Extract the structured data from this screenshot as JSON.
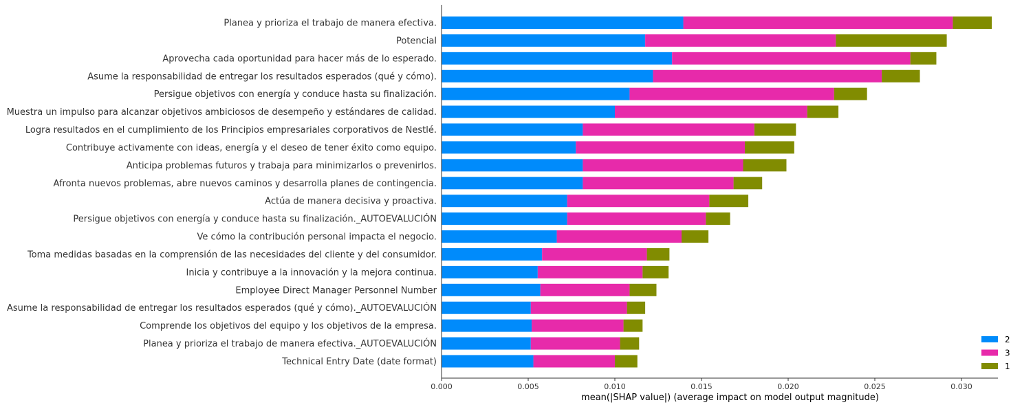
{
  "chart_data": {
    "type": "bar",
    "orientation": "horizontal",
    "stacked": true,
    "xlabel": "mean(|SHAP value|) (average impact on model output magnitude)",
    "xlim": [
      0,
      0.0324
    ],
    "xticks": [
      "0.000",
      "0.005",
      "0.010",
      "0.015",
      "0.020",
      "0.025",
      "0.030"
    ],
    "tick_values": [
      0,
      0.005,
      0.01,
      0.015,
      0.02,
      0.025,
      0.03
    ],
    "grid": false,
    "legend_position": "bottom-right",
    "categories": [
      "Planea y prioriza el trabajo de manera efectiva.",
      "Potencial",
      "Aprovecha cada oportunidad para hacer más de lo esperado.",
      "Asume la responsabilidad de entregar los resultados esperados (qué y cómo).",
      "Persigue objetivos con energía y conduce hasta su finalización.",
      "Muestra un impulso para alcanzar objetivos ambiciosos de desempeño y estándares de calidad.",
      "Logra resultados en el cumplimiento de los Principios empresariales corporativos de Nestlé.",
      "Contribuye activamente con ideas, energía y el deseo de tener éxito como equipo.",
      "Anticipa problemas futuros y trabaja para minimizarlos o prevenirlos.",
      "Afronta nuevos problemas, abre nuevos caminos y desarrolla planes de contingencia.",
      "Actúa de manera decisiva y proactiva.",
      "Persigue objetivos con energía y conduce hasta su finalización._AUTOEVALUCIÓN",
      "Ve cómo la contribución personal impacta el negocio.",
      "Toma medidas basadas en la comprensión de las necesidades del cliente y del consumidor.",
      "Inicia y contribuye a la innovación y la mejora continua.",
      "Employee Direct Manager Personnel Number",
      "Asume la responsabilidad de entregar los resultados esperados (qué y cómo)._AUTOEVALUCIÓN",
      "Comprende los objetivos del equipo y los objetivos de la empresa.",
      "Planea y prioriza el trabajo de manera efectiva._AUTOEVALUCIÓN",
      "Technical Entry Date (date format)"
    ],
    "series": [
      {
        "name": "2",
        "color": "#008bfb",
        "values": [
          0.01395,
          0.01175,
          0.0133,
          0.0122,
          0.01085,
          0.01,
          0.00815,
          0.00775,
          0.00815,
          0.00815,
          0.00725,
          0.00725,
          0.00665,
          0.0058,
          0.00555,
          0.0057,
          0.00515,
          0.0052,
          0.00515,
          0.0053
        ]
      },
      {
        "name": "3",
        "color": "#e72aaa",
        "values": [
          0.01555,
          0.011,
          0.01375,
          0.0132,
          0.0118,
          0.0111,
          0.0099,
          0.00975,
          0.00925,
          0.0087,
          0.0082,
          0.008,
          0.0072,
          0.00605,
          0.00605,
          0.00515,
          0.00555,
          0.0053,
          0.00515,
          0.0047
        ]
      },
      {
        "name": "1",
        "color": "#818c01",
        "values": [
          0.00225,
          0.0064,
          0.0015,
          0.0022,
          0.0019,
          0.0018,
          0.0024,
          0.00285,
          0.0025,
          0.00165,
          0.00225,
          0.0014,
          0.00155,
          0.0013,
          0.0015,
          0.00155,
          0.00105,
          0.0011,
          0.0011,
          0.0013
        ]
      }
    ],
    "legend": [
      {
        "label": "2",
        "color": "#008bfb"
      },
      {
        "label": "3",
        "color": "#e72aaa"
      },
      {
        "label": "1",
        "color": "#818c01"
      }
    ]
  }
}
